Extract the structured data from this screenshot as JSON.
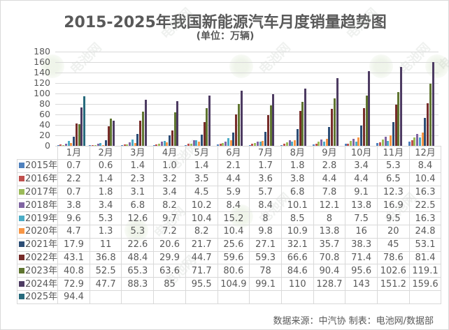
{
  "header": {
    "title": "2015-2025年我国新能源汽车月度销量趋势图",
    "subtitle": "(单位：万辆)"
  },
  "footer": {
    "source": "数据来源：中汽协  制表：电池网/数据部"
  },
  "watermark": {
    "text": "电池网"
  },
  "chart_data": {
    "type": "bar",
    "title": "2015-2025年我国新能源汽车月度销量趋势图",
    "subtitle": "(单位：万辆)",
    "xlabel": "",
    "ylabel": "万辆",
    "ylim": [
      0,
      180
    ],
    "yticks": [
      0,
      20,
      40,
      60,
      80,
      100,
      120,
      140,
      160,
      180
    ],
    "grid": true,
    "legend_position": "data-table-left",
    "categories": [
      "1月",
      "2月",
      "3月",
      "4月",
      "5月",
      "6月",
      "7月",
      "8月",
      "9月",
      "10月",
      "11月",
      "12月"
    ],
    "series": [
      {
        "name": "2015年",
        "color": "#4F81BD",
        "values": [
          0.7,
          0.6,
          1.4,
          1.0,
          1.4,
          2.1,
          1.7,
          1.8,
          2.8,
          3.4,
          5.3,
          8.4
        ],
        "labels": [
          "0.7",
          "0.6",
          "1.4",
          "1.0",
          "1.4",
          "2.1",
          "1.7",
          "1.8",
          "2.8",
          "3.4",
          "5.3",
          "8.4"
        ]
      },
      {
        "name": "2016年",
        "color": "#C0504D",
        "values": [
          2.2,
          1.4,
          2.3,
          3.2,
          3.5,
          4.4,
          3.6,
          3.8,
          4.4,
          4.4,
          6.5,
          10.4
        ],
        "labels": [
          "2.2",
          "1.4",
          "2.3",
          "3.2",
          "3.5",
          "4.4",
          "3.6",
          "3.8",
          "4.4",
          "4.4",
          "6.5",
          "10.4"
        ]
      },
      {
        "name": "2017年",
        "color": "#9BBB59",
        "values": [
          0.7,
          1.8,
          3.1,
          3.4,
          4.5,
          5.9,
          5.7,
          6.8,
          7.8,
          9.1,
          12.3,
          16.3
        ],
        "labels": [
          "0.7",
          "1.8",
          "3.1",
          "3.4",
          "4.5",
          "5.9",
          "5.7",
          "6.8",
          "7.8",
          "9.1",
          "12.3",
          "16.3"
        ]
      },
      {
        "name": "2018年",
        "color": "#8064A2",
        "values": [
          3.8,
          3.4,
          6.8,
          8.2,
          10.2,
          8.4,
          8.4,
          10.1,
          12.1,
          13.8,
          16.9,
          22.5
        ],
        "labels": [
          "3.8",
          "3.4",
          "6.8",
          "8.2",
          "10.2",
          "8.4",
          "8.4",
          "10.1",
          "12.1",
          "13.8",
          "16.9",
          "22.5"
        ]
      },
      {
        "name": "2019年",
        "color": "#4BACC6",
        "values": [
          9.6,
          5.3,
          12.6,
          9.7,
          10.4,
          15.2,
          8,
          8.5,
          8,
          7.5,
          9.5,
          16.3
        ],
        "labels": [
          "9.6",
          "5.3",
          "12.6",
          "9.7",
          "10.4",
          "15.2",
          "8",
          "8.5",
          "8",
          "7.5",
          "9.5",
          "16.3"
        ]
      },
      {
        "name": "2020年",
        "color": "#F79646",
        "values": [
          4.7,
          1.3,
          5.3,
          7.2,
          8.2,
          10.4,
          9.8,
          10.9,
          13.8,
          16,
          20,
          24.8
        ],
        "labels": [
          "4.7",
          "1.3",
          "5.3",
          "7.2",
          "8.2",
          "10.4",
          "9.8",
          "10.9",
          "13.8",
          "16",
          "20",
          "24.8"
        ]
      },
      {
        "name": "2021年",
        "color": "#2C4D75",
        "values": [
          17.9,
          11,
          22.6,
          20.6,
          21.7,
          25.6,
          27.1,
          32.1,
          35.7,
          38.3,
          45,
          53.1
        ],
        "labels": [
          "17.9",
          "11",
          "22.6",
          "20.6",
          "21.7",
          "25.6",
          "27.1",
          "32.1",
          "35.7",
          "38.3",
          "45",
          "53.1"
        ]
      },
      {
        "name": "2022年",
        "color": "#772C2A",
        "values": [
          43.1,
          36.8,
          48.4,
          29.9,
          44.7,
          59.6,
          59.3,
          66.6,
          70.8,
          71.4,
          78.6,
          81.4
        ],
        "labels": [
          "43.1",
          "36.8",
          "48.4",
          "29.9",
          "44.7",
          "59.6",
          "59.3",
          "66.6",
          "70.8",
          "71.4",
          "78.6",
          "81.4"
        ]
      },
      {
        "name": "2023年",
        "color": "#5F7530",
        "values": [
          40.8,
          52.5,
          65.3,
          63.6,
          71.7,
          80.6,
          78,
          84.6,
          90.4,
          95.6,
          102.6,
          119.1
        ],
        "labels": [
          "40.8",
          "52.5",
          "65.3",
          "63.6",
          "71.7",
          "80.6",
          "78",
          "84.6",
          "90.4",
          "95.6",
          "102.6",
          "119.1"
        ]
      },
      {
        "name": "2024年",
        "color": "#4D3B62",
        "values": [
          72.9,
          47.7,
          88.3,
          85,
          95.5,
          104.9,
          99.1,
          110,
          128.7,
          143,
          151.2,
          159.6
        ],
        "labels": [
          "72.9",
          "47.7",
          "88.3",
          "85",
          "95.5",
          "104.9",
          "99.1",
          "110",
          "128.7",
          "143",
          "151.2",
          "159.6"
        ]
      },
      {
        "name": "2025年",
        "color": "#276A7C",
        "values": [
          94.4,
          null,
          null,
          null,
          null,
          null,
          null,
          null,
          null,
          null,
          null,
          null
        ],
        "labels": [
          "94.4",
          "",
          "",
          "",
          "",
          "",
          "",
          "",
          "",
          "",
          "",
          ""
        ]
      }
    ]
  }
}
